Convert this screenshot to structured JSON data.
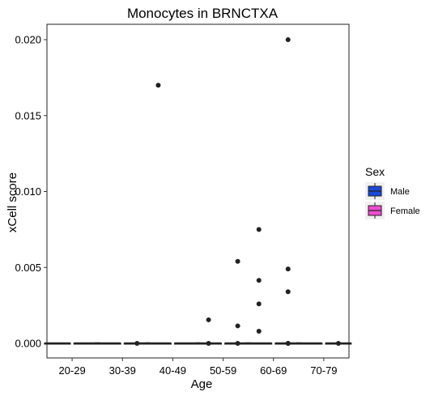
{
  "chart_data": {
    "type": "boxplot",
    "title": "Monocytes in BRNCTXA",
    "xlabel": "Age",
    "ylabel": "xCell score",
    "categories": [
      "20-29",
      "30-39",
      "40-49",
      "50-59",
      "60-69",
      "70-79"
    ],
    "ylim": [
      -0.001,
      0.0208
    ],
    "yticks": [
      0.0,
      0.005,
      0.01,
      0.015,
      0.02
    ],
    "ytick_labels": [
      "0.000",
      "0.005",
      "0.010",
      "0.015",
      "0.020"
    ],
    "grid": false,
    "legend": {
      "title": "Sex",
      "placement": "right",
      "entries": [
        {
          "name": "Male",
          "color": "#1a49d9"
        },
        {
          "name": "Female",
          "color": "#f24ad0"
        }
      ]
    },
    "series": [
      {
        "name": "Male",
        "color": "#1a49d9",
        "boxes": [
          {
            "category": "20-29",
            "q1": 0,
            "median": 0,
            "q3": 0,
            "whisker_low": 0,
            "whisker_high": 0,
            "outliers": []
          },
          {
            "category": "30-39",
            "q1": 0,
            "median": 0,
            "q3": 0,
            "whisker_low": 0,
            "whisker_high": 0,
            "outliers": []
          },
          {
            "category": "40-49",
            "q1": 0,
            "median": 0,
            "q3": 0,
            "whisker_low": 0,
            "whisker_high": 0,
            "outliers": [
              0.017
            ]
          },
          {
            "category": "50-59",
            "q1": 0,
            "median": 0,
            "q3": 0,
            "whisker_low": 0,
            "whisker_high": 0,
            "outliers": [
              0.0,
              0.00155
            ]
          },
          {
            "category": "60-69",
            "q1": 0,
            "median": 0,
            "q3": 0,
            "whisker_low": 0,
            "whisker_high": 0,
            "outliers": [
              0.0075,
              0.00415,
              0.0026,
              0.0008
            ]
          },
          {
            "category": "70-79",
            "q1": 0,
            "median": 0,
            "q3": 0,
            "whisker_low": 0,
            "whisker_high": 0,
            "outliers": []
          }
        ]
      },
      {
        "name": "Female",
        "color": "#f24ad0",
        "boxes": [
          {
            "category": "20-29",
            "q1": 0,
            "median": 0,
            "q3": 0,
            "whisker_low": 0,
            "whisker_high": 0,
            "outliers": []
          },
          {
            "category": "30-39",
            "q1": 0,
            "median": 0,
            "q3": 0,
            "whisker_low": 0,
            "whisker_high": 0,
            "outliers": [
              0.0
            ]
          },
          {
            "category": "40-49",
            "q1": 0,
            "median": 0,
            "q3": 0,
            "whisker_low": 0,
            "whisker_high": 0,
            "outliers": []
          },
          {
            "category": "50-59",
            "q1": 0,
            "median": 0,
            "q3": 0,
            "whisker_low": 0,
            "whisker_high": 0,
            "outliers": [
              0.0054,
              0.00115,
              0.0
            ]
          },
          {
            "category": "60-69",
            "q1": 0,
            "median": 0,
            "q3": 0,
            "whisker_low": 0,
            "whisker_high": 0,
            "outliers": [
              0.02,
              0.0049,
              0.0034,
              0.0,
              0.0
            ]
          },
          {
            "category": "70-79",
            "q1": 0,
            "median": 0,
            "q3": 0,
            "whisker_low": 0,
            "whisker_high": 0,
            "outliers": [
              0.0
            ]
          }
        ]
      }
    ]
  }
}
